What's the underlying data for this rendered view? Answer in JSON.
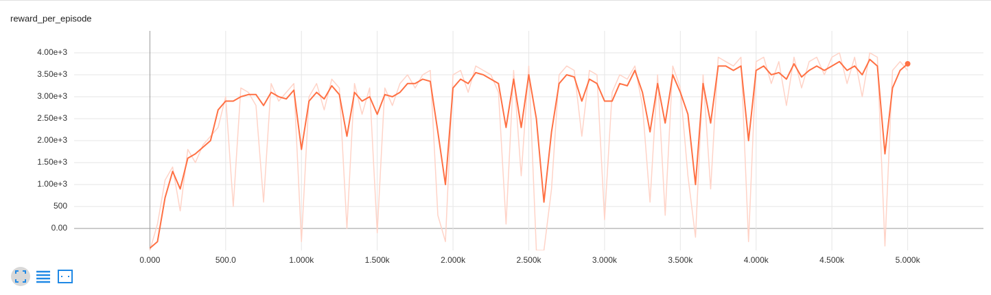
{
  "chart_data": {
    "type": "line",
    "title": "reward_per_episode",
    "x": [
      0,
      50,
      100,
      150,
      200,
      250,
      300,
      350,
      400,
      450,
      500,
      550,
      600,
      650,
      700,
      750,
      800,
      850,
      900,
      950,
      1000,
      1050,
      1100,
      1150,
      1200,
      1250,
      1300,
      1350,
      1400,
      1450,
      1500,
      1550,
      1600,
      1650,
      1700,
      1750,
      1800,
      1850,
      1900,
      1950,
      2000,
      2050,
      2100,
      2150,
      2200,
      2250,
      2300,
      2350,
      2400,
      2450,
      2500,
      2550,
      2600,
      2650,
      2700,
      2750,
      2800,
      2850,
      2900,
      2950,
      3000,
      3050,
      3100,
      3150,
      3200,
      3250,
      3300,
      3350,
      3400,
      3450,
      3500,
      3550,
      3600,
      3650,
      3700,
      3750,
      3800,
      3850,
      3900,
      3950,
      4000,
      4050,
      4100,
      4150,
      4200,
      4250,
      4300,
      4350,
      4400,
      4450,
      4500,
      4550,
      4600,
      4650,
      4700,
      4750,
      4800,
      4850,
      4900,
      4950,
      5000
    ],
    "series": [
      {
        "color": "#ff7043",
        "values": [
          -450,
          -300,
          700,
          1300,
          900,
          1600,
          1700,
          1850,
          2000,
          2700,
          2900,
          2900,
          3000,
          3050,
          3050,
          2800,
          3100,
          3000,
          2950,
          3150,
          1800,
          2900,
          3100,
          2950,
          3250,
          3050,
          2100,
          3100,
          2900,
          3000,
          2600,
          3050,
          3000,
          3100,
          3300,
          3300,
          3400,
          3350,
          2200,
          1000,
          3200,
          3400,
          3300,
          3550,
          3500,
          3400,
          3300,
          2300,
          3400,
          2300,
          3500,
          2500,
          600,
          2200,
          3300,
          3500,
          3450,
          2900,
          3400,
          3300,
          2900,
          2900,
          3300,
          3250,
          3600,
          3100,
          2200,
          3300,
          2400,
          3500,
          3100,
          2600,
          1000,
          3300,
          2400,
          3700,
          3700,
          3600,
          3700,
          2000,
          3600,
          3700,
          3500,
          3550,
          3400,
          3750,
          3450,
          3600,
          3700,
          3600,
          3700,
          3800,
          3600,
          3700,
          3500,
          3850,
          3700,
          1700,
          3200,
          3600,
          3750
        ]
      },
      {
        "color": "#ffd3c7",
        "values": [
          -500,
          100,
          1100,
          1400,
          400,
          1800,
          1500,
          1900,
          2100,
          2300,
          3000,
          500,
          3200,
          3100,
          2800,
          600,
          3300,
          2900,
          3100,
          3300,
          -300,
          3000,
          3300,
          2700,
          3400,
          3200,
          0,
          3300,
          2600,
          3200,
          -100,
          3200,
          2800,
          3300,
          3500,
          3200,
          3500,
          3600,
          300,
          -300,
          3500,
          3600,
          3100,
          3700,
          3600,
          3500,
          3100,
          100,
          3600,
          1200,
          3700,
          -500,
          -500,
          900,
          3500,
          3700,
          3600,
          2100,
          3600,
          3500,
          200,
          3100,
          3500,
          3400,
          3700,
          2800,
          600,
          3500,
          300,
          3700,
          3200,
          1200,
          -200,
          3500,
          900,
          3900,
          3800,
          3700,
          3900,
          -300,
          3800,
          3900,
          3300,
          3800,
          2800,
          3900,
          3200,
          3800,
          3900,
          3500,
          3900,
          4000,
          3300,
          3900,
          3000,
          4000,
          3900,
          -400,
          3600,
          3800,
          3600
        ]
      }
    ],
    "xlim": [
      -500,
      5500
    ],
    "xticks": [
      {
        "value": 0,
        "label": "0.000"
      },
      {
        "value": 500,
        "label": "500.0"
      },
      {
        "value": 1000,
        "label": "1.000k"
      },
      {
        "value": 1500,
        "label": "1.500k"
      },
      {
        "value": 2000,
        "label": "2.000k"
      },
      {
        "value": 2500,
        "label": "2.500k"
      },
      {
        "value": 3000,
        "label": "3.000k"
      },
      {
        "value": 3500,
        "label": "3.500k"
      },
      {
        "value": 4000,
        "label": "4.000k"
      },
      {
        "value": 4500,
        "label": "4.500k"
      },
      {
        "value": 5000,
        "label": "5.000k"
      }
    ],
    "ylim": [
      -500,
      4500
    ],
    "yticks": [
      {
        "value": 0,
        "label": "0.00"
      },
      500,
      {
        "value": 1000,
        "label": "1.00e+3"
      },
      {
        "value": 1500,
        "label": "1.50e+3"
      },
      {
        "value": 2000,
        "label": "2.00e+3"
      },
      {
        "value": 2500,
        "label": "2.50e+3"
      },
      {
        "value": 3000,
        "label": "3.00e+3"
      },
      {
        "value": 3500,
        "label": "3.50e+3"
      },
      {
        "value": 4000,
        "label": "4.00e+3"
      }
    ],
    "grid": true
  }
}
